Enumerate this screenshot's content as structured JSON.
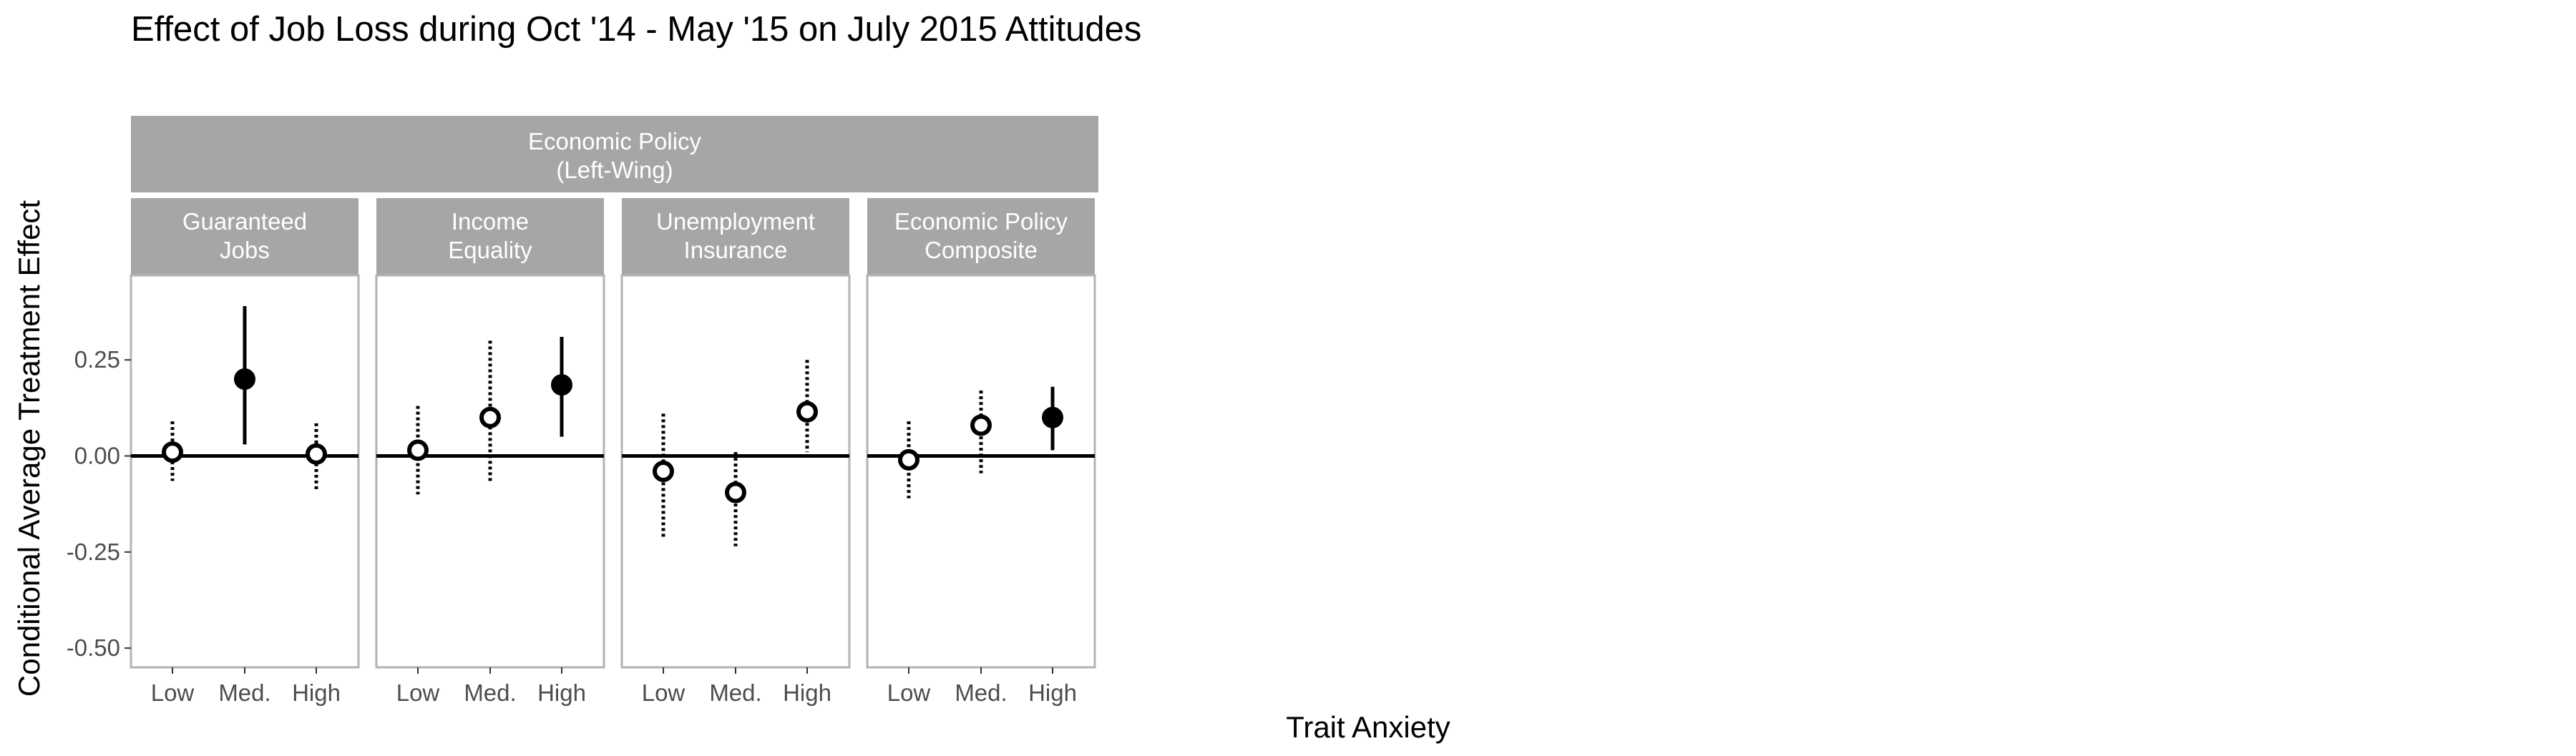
{
  "chart_data": {
    "type": "scatter",
    "title": "Effect of Job Loss during Oct '14 - May '15 on July 2015 Attitudes",
    "xlabel": "Trait Anxiety",
    "ylabel": "Conditional Average Treatment Effect",
    "top_strip": [
      "Economic Policy",
      "(Left-Wing)"
    ],
    "categories": [
      "Low",
      "Med.",
      "High"
    ],
    "ylim": [
      -0.55,
      0.47
    ],
    "y_ticks": [
      {
        "value": 0.25,
        "label": "0.25"
      },
      {
        "value": 0.0,
        "label": "0.00"
      },
      {
        "value": -0.25,
        "label": "-0.25"
      },
      {
        "value": -0.5,
        "label": "-0.50"
      }
    ],
    "reference_line": 0,
    "grid": false,
    "encoding": {
      "filled_marker_solid_interval": "significant",
      "hollow_marker_dotted_interval": "not significant"
    },
    "panels": [
      {
        "strip": [
          "Guaranteed",
          "Jobs"
        ],
        "points": [
          {
            "x": "Low",
            "y": 0.01,
            "lower": -0.065,
            "upper": 0.09,
            "significant": false
          },
          {
            "x": "Med.",
            "y": 0.2,
            "lower": 0.03,
            "upper": 0.39,
            "significant": true
          },
          {
            "x": "High",
            "y": 0.005,
            "lower": -0.09,
            "upper": 0.085,
            "significant": false
          }
        ]
      },
      {
        "strip": [
          "Income",
          "Equality"
        ],
        "points": [
          {
            "x": "Low",
            "y": 0.015,
            "lower": -0.1,
            "upper": 0.13,
            "significant": false
          },
          {
            "x": "Med.",
            "y": 0.1,
            "lower": -0.07,
            "upper": 0.3,
            "significant": false
          },
          {
            "x": "High",
            "y": 0.185,
            "lower": 0.05,
            "upper": 0.31,
            "significant": true
          }
        ]
      },
      {
        "strip": [
          "Unemployment",
          "Insurance"
        ],
        "points": [
          {
            "x": "Low",
            "y": -0.04,
            "lower": -0.21,
            "upper": 0.11,
            "significant": false
          },
          {
            "x": "Med.",
            "y": -0.095,
            "lower": -0.235,
            "upper": 0.01,
            "significant": false
          },
          {
            "x": "High",
            "y": 0.115,
            "lower": 0.01,
            "upper": 0.25,
            "significant": false
          }
        ]
      },
      {
        "strip": [
          "Economic Policy",
          "Composite"
        ],
        "points": [
          {
            "x": "Low",
            "y": -0.01,
            "lower": -0.11,
            "upper": 0.09,
            "significant": false
          },
          {
            "x": "Med.",
            "y": 0.08,
            "lower": -0.045,
            "upper": 0.17,
            "significant": false
          },
          {
            "x": "High",
            "y": 0.1,
            "lower": 0.015,
            "upper": 0.18,
            "significant": true
          }
        ]
      }
    ]
  }
}
